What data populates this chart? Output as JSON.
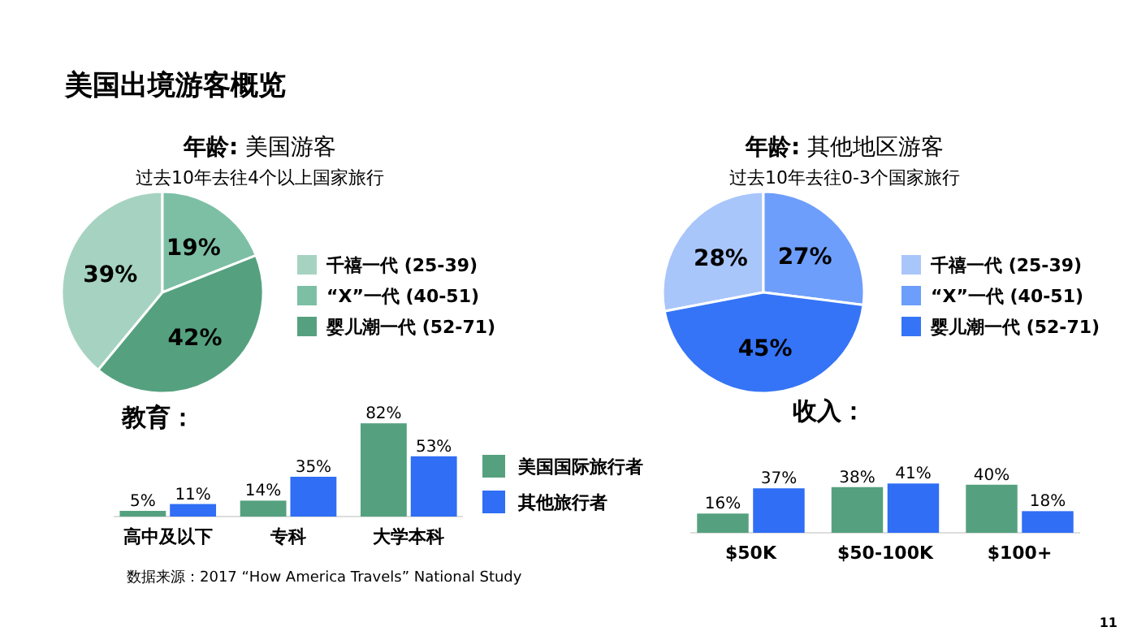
{
  "chart_data": [
    {
      "type": "pie",
      "title": "年龄: 美国游客",
      "subtitle": "过去10年去往4个以上国家旅行",
      "categories": [
        "千禧一代  (25-39)",
        "“X”一代 (40-51)",
        "婴儿潮一代 (52-71)"
      ],
      "values": [
        39,
        19,
        42
      ],
      "value_labels": [
        "39%",
        "19%",
        "42%"
      ],
      "colors": [
        "#a6d3c1",
        "#7dbfa5",
        "#55a17f"
      ],
      "legend": "right"
    },
    {
      "type": "pie",
      "title": "年龄: 其他地区游客",
      "subtitle": "过去10年去往0-3个国家旅行",
      "categories": [
        "千禧一代 (25-39)",
        "“X”一代 (40-51)",
        "婴儿潮一代 (52-71)"
      ],
      "values": [
        28,
        27,
        45
      ],
      "value_labels": [
        "28%",
        "27%",
        "45%"
      ],
      "colors": [
        "#a9c6fb",
        "#6e9efb",
        "#3574f6"
      ],
      "legend": "right"
    },
    {
      "type": "bar",
      "title": "教育：",
      "categories": [
        "高中及以下",
        "专科",
        "大学本科"
      ],
      "legend": "right",
      "series": [
        {
          "name": "美国国际旅行者",
          "color": "#55a17f",
          "values": [
            5,
            14,
            82
          ],
          "value_labels": [
            "5%",
            "14%",
            "82%"
          ]
        },
        {
          "name": "其他旅行者",
          "color": "#2f6ef5",
          "values": [
            11,
            35,
            53
          ],
          "value_labels": [
            "11%",
            "35%",
            "53%"
          ]
        }
      ]
    },
    {
      "type": "bar",
      "title": "收入：",
      "categories": [
        "$50K",
        "$50-100K",
        "$100+"
      ],
      "series": [
        {
          "color": "#55a17f",
          "values": [
            16,
            38,
            40
          ],
          "value_labels": [
            "16%",
            "38%",
            "40%"
          ]
        },
        {
          "color": "#2f6ef5",
          "values": [
            37,
            41,
            18
          ],
          "value_labels": [
            "37%",
            "41%",
            "18%"
          ]
        }
      ]
    },
    {
      "type": "other",
      "title": "美国出境游客概览",
      "annotations": [
        "数据来源：2017 “How America Travels” National Study",
        "11"
      ]
    }
  ]
}
